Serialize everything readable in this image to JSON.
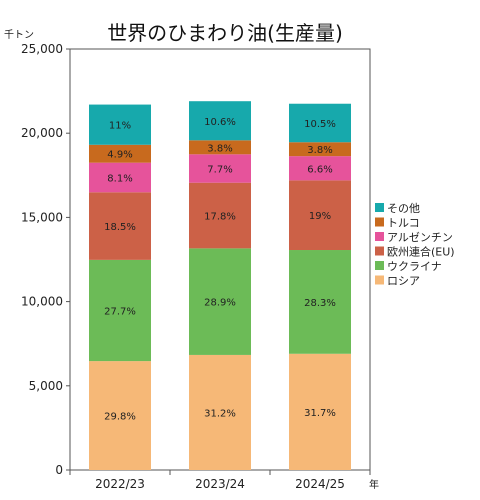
{
  "chart_data": {
    "type": "bar",
    "stacked": true,
    "title": "世界のひまわり油(生産量)",
    "y_unit_label": "千トン",
    "x_unit_label": "年",
    "categories": [
      "2022/23",
      "2023/24",
      "2024/25"
    ],
    "totals": [
      21700,
      21900,
      21750
    ],
    "ylim": [
      0,
      25000
    ],
    "y_ticks": [
      0,
      5000,
      10000,
      15000,
      20000,
      25000
    ],
    "y_tick_labels": [
      "0",
      "5,000",
      "10,000",
      "15,000",
      "20,000",
      "25,000"
    ],
    "grid": false,
    "legend_position": "right",
    "series": [
      {
        "name": "ロシア",
        "color": "#f6b877",
        "shares": [
          29.8,
          31.2,
          31.7
        ],
        "labels": [
          "29.8%",
          "31.2%",
          "31.7%"
        ]
      },
      {
        "name": "ウクライナ",
        "color": "#6cbb57",
        "shares": [
          27.7,
          28.9,
          28.3
        ],
        "labels": [
          "27.7%",
          "28.9%",
          "28.3%"
        ]
      },
      {
        "name": "欧州連合(EU)",
        "color": "#cc6147",
        "shares": [
          18.5,
          17.8,
          19
        ],
        "labels": [
          "18.5%",
          "17.8%",
          "19%"
        ]
      },
      {
        "name": "アルゼンチン",
        "color": "#e6539b",
        "shares": [
          8.1,
          7.7,
          6.6
        ],
        "labels": [
          "8.1%",
          "7.7%",
          "6.6%"
        ]
      },
      {
        "name": "トルコ",
        "color": "#c86a1e",
        "shares": [
          4.9,
          3.8,
          3.8
        ],
        "labels": [
          "4.9%",
          "3.8%",
          "3.8%"
        ]
      },
      {
        "name": "その他",
        "color": "#17a9ac",
        "shares": [
          11,
          10.6,
          10.5
        ],
        "labels": [
          "11%",
          "10.6%",
          "10.5%"
        ]
      }
    ]
  }
}
